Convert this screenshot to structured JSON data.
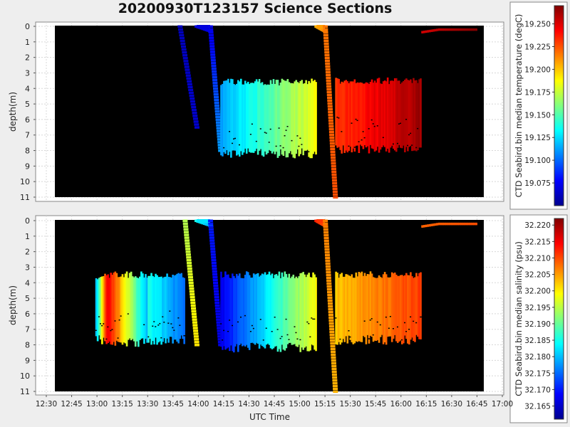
{
  "title": "20200930T123157 Science Sections",
  "xlabel": "UTC Time",
  "x_ticks": [
    "12:30",
    "12:45",
    "13:00",
    "13:15",
    "13:30",
    "13:45",
    "14:00",
    "14:15",
    "14:30",
    "14:45",
    "15:00",
    "15:15",
    "15:30",
    "15:45",
    "16:00",
    "16:15",
    "16:30",
    "16:45",
    "17:00"
  ],
  "chart_data": [
    {
      "type": "heatmap",
      "ylabel": "depth(m)",
      "ylim": [
        0,
        11
      ],
      "y_ticks": [
        "0",
        "1",
        "2",
        "3",
        "4",
        "5",
        "6",
        "7",
        "8",
        "9",
        "10",
        "11"
      ],
      "y_inverted": true,
      "xlim": [
        "12:30",
        "17:00"
      ],
      "grid": true,
      "colorbar": {
        "label": "CTD Seabird.bin median temperature (degC)",
        "min": 19.05,
        "max": 19.27,
        "ticks": [
          "19.075",
          "19.100",
          "19.125",
          "19.150",
          "19.175",
          "19.200",
          "19.225",
          "19.250"
        ],
        "colormap": "jet"
      },
      "segments": [
        {
          "kind": "profile",
          "t0": "13:49",
          "t1": "13:59",
          "depth_max": 6.5,
          "v0": 0.06,
          "v1": 0.08
        },
        {
          "kind": "profile",
          "t0": "13:59",
          "t1": "14:07",
          "depth_max": 0.3,
          "v0": 0.08,
          "v1": 0.1
        },
        {
          "kind": "profile",
          "t0": "14:07",
          "t1": "14:13",
          "depth_max": 8.0,
          "v0": 0.1,
          "v1": 0.28
        },
        {
          "kind": "block",
          "t0": "14:13",
          "t1": "15:10",
          "depth_top": 3.5,
          "depth_bottom": 8.5,
          "v0": 0.28,
          "v1": 0.62
        },
        {
          "kind": "profile",
          "t0": "15:10",
          "t1": "15:15",
          "depth_max": 0.3,
          "v0": 0.7,
          "v1": 0.74
        },
        {
          "kind": "profile",
          "t0": "15:15",
          "t1": "15:21",
          "depth_max": 11.0,
          "v0": 0.76,
          "v1": 0.8
        },
        {
          "kind": "block",
          "t0": "15:21",
          "t1": "16:12",
          "depth_top": 3.4,
          "depth_bottom": 8.2,
          "v0": 0.82,
          "v1": 0.97
        },
        {
          "kind": "surface",
          "t0": "16:12",
          "t1": "16:45",
          "depth": 0.2,
          "v0": 0.92,
          "v1": 1.0
        }
      ]
    },
    {
      "type": "heatmap",
      "ylabel": "depth(m)",
      "ylim": [
        0,
        11
      ],
      "y_ticks": [
        "0",
        "1",
        "2",
        "3",
        "4",
        "5",
        "6",
        "7",
        "8",
        "9",
        "10",
        "11"
      ],
      "y_inverted": true,
      "xlim": [
        "12:30",
        "17:00"
      ],
      "grid": true,
      "colorbar": {
        "label": "CTD Seabird.bin median salinity (psu)",
        "min": 32.161,
        "max": 32.222,
        "ticks": [
          "32.165",
          "32.170",
          "32.175",
          "32.180",
          "32.185",
          "32.190",
          "32.195",
          "32.200",
          "32.205",
          "32.210",
          "32.215",
          "32.220"
        ],
        "colormap": "jet"
      },
      "segments": [
        {
          "kind": "block",
          "t0": "12:59",
          "t1": "13:06",
          "depth_top": 3.5,
          "depth_bottom": 8.0,
          "v0": 0.3,
          "v1": 0.85
        },
        {
          "kind": "block",
          "t0": "13:06",
          "t1": "13:30",
          "depth_top": 3.4,
          "depth_bottom": 8.2,
          "v0": 0.9,
          "v1": 0.3
        },
        {
          "kind": "block",
          "t0": "13:30",
          "t1": "13:52",
          "depth_top": 3.4,
          "depth_bottom": 8.0,
          "v0": 0.4,
          "v1": 0.22
        },
        {
          "kind": "profile",
          "t0": "13:52",
          "t1": "13:59",
          "depth_max": 8.0,
          "v0": 0.55,
          "v1": 0.65
        },
        {
          "kind": "profile",
          "t0": "13:59",
          "t1": "14:07",
          "depth_max": 0.3,
          "v0": 0.4,
          "v1": 0.3
        },
        {
          "kind": "profile",
          "t0": "14:07",
          "t1": "14:13",
          "depth_max": 8.0,
          "v0": 0.15,
          "v1": 0.1
        },
        {
          "kind": "block",
          "t0": "14:13",
          "t1": "15:10",
          "depth_top": 3.4,
          "depth_bottom": 8.5,
          "v0": 0.1,
          "v1": 0.62
        },
        {
          "kind": "profile",
          "t0": "15:10",
          "t1": "15:15",
          "depth_max": 0.3,
          "v0": 0.85,
          "v1": 0.8
        },
        {
          "kind": "profile",
          "t0": "15:15",
          "t1": "15:21",
          "depth_max": 11.0,
          "v0": 0.75,
          "v1": 0.7
        },
        {
          "kind": "block",
          "t0": "15:21",
          "t1": "16:12",
          "depth_top": 3.4,
          "depth_bottom": 8.0,
          "v0": 0.68,
          "v1": 0.82
        },
        {
          "kind": "surface",
          "t0": "16:12",
          "t1": "16:45",
          "depth": 0.2,
          "v0": 0.78,
          "v1": 0.8
        }
      ]
    }
  ]
}
